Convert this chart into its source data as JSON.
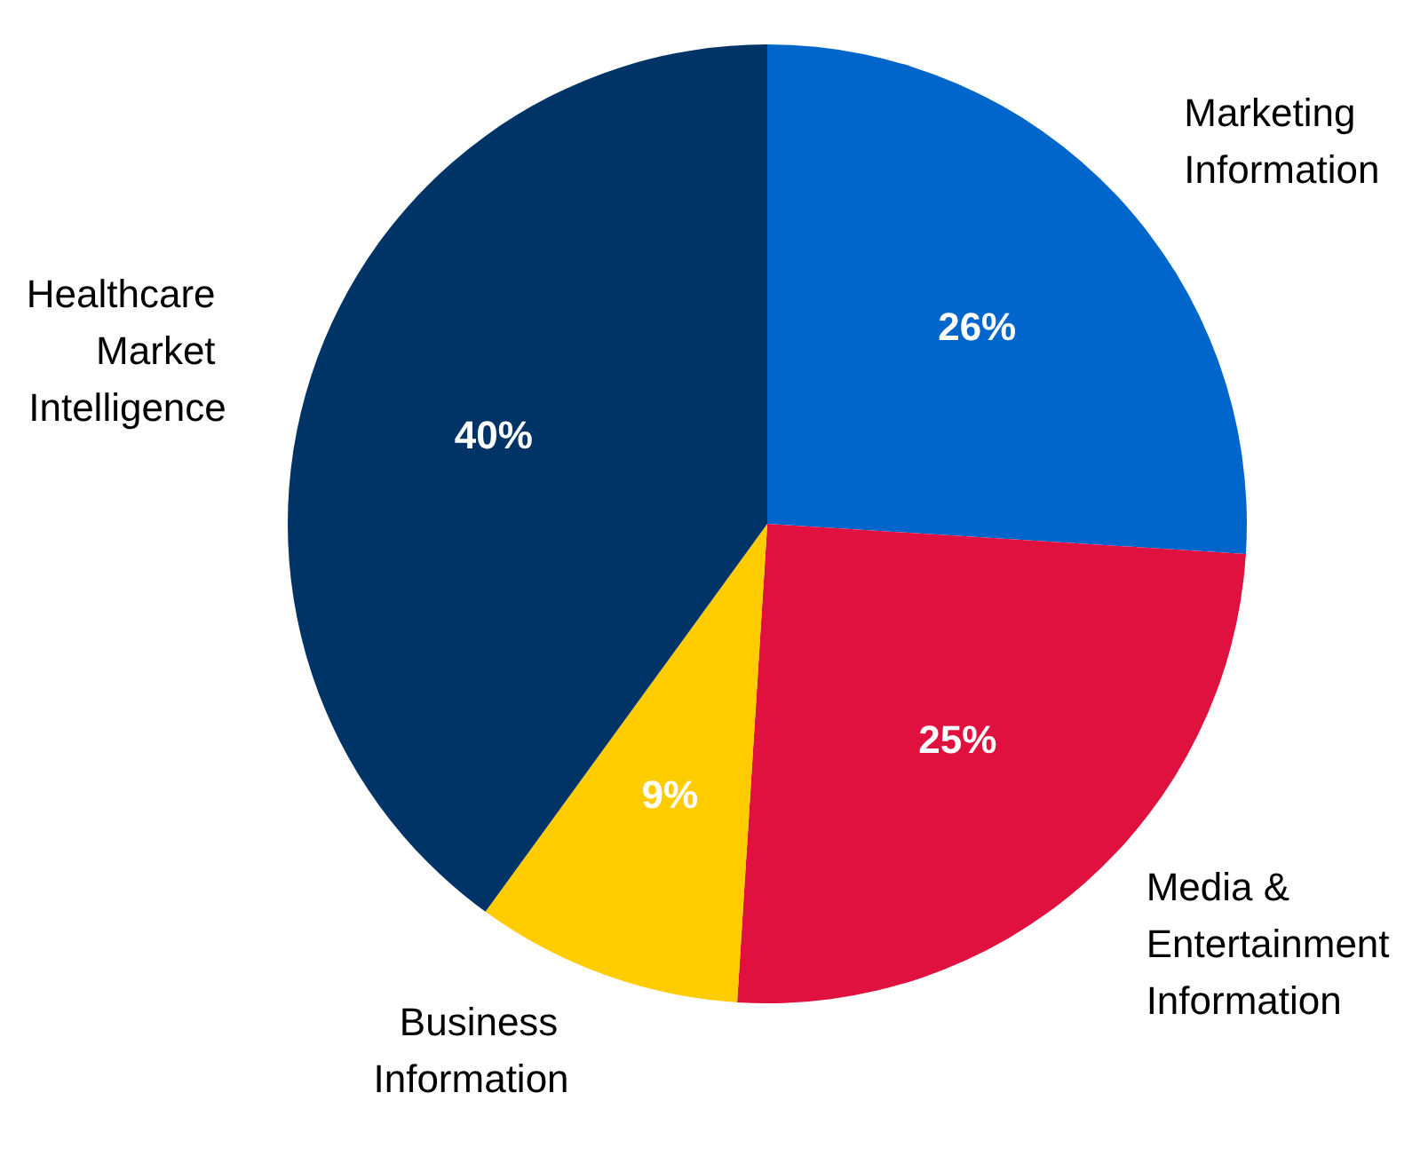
{
  "chart_data": {
    "type": "pie",
    "categories": [
      "Marketing Information",
      "Media & Entertainment Information",
      "Business Information",
      "Healthcare Market Intelligence"
    ],
    "values": [
      26,
      25,
      9,
      40
    ],
    "colors": [
      "#0066cc",
      "#e0103f",
      "#ffcc00",
      "#003366"
    ],
    "value_labels": [
      "26%",
      "25%",
      "9%",
      "40%"
    ],
    "legend": false
  }
}
